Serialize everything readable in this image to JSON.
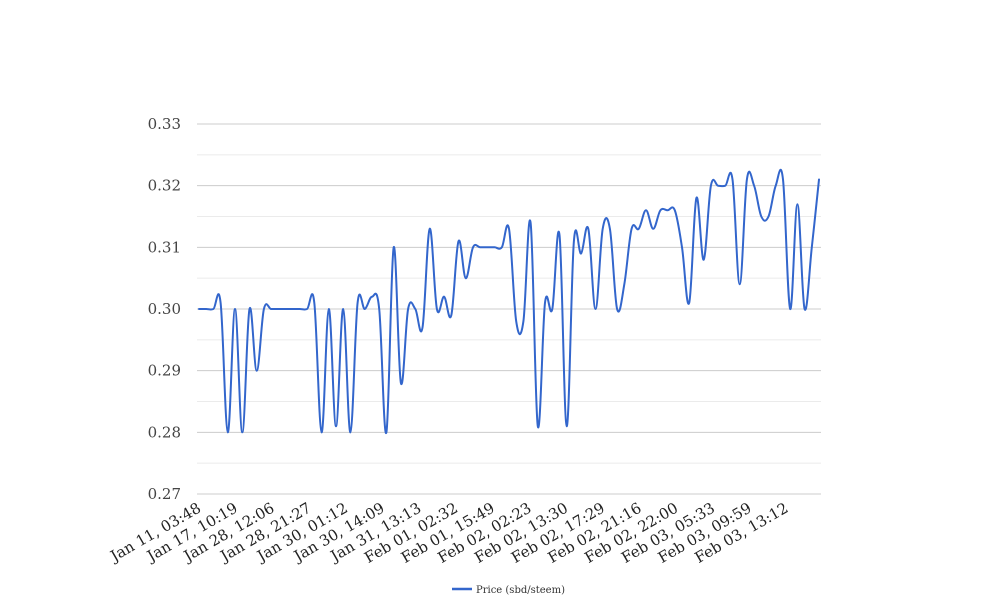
{
  "chart_data": {
    "type": "line",
    "title": "",
    "xlabel": "",
    "ylabel": "",
    "ylim": [
      0.27,
      0.33
    ],
    "y_ticks": [
      "0.27",
      "0.28",
      "0.29",
      "0.30",
      "0.31",
      "0.32",
      "0.33"
    ],
    "x_tick_labels": [
      "Jan 11, 03:48",
      "Jan 17, 10:19",
      "Jan 28, 12:06",
      "Jan 28, 21:27",
      "Jan 30, 01:12",
      "Jan 30, 14:09",
      "Jan 31, 13:13",
      "Feb 01, 02:32",
      "Feb 01, 15:49",
      "Feb 02, 02:23",
      "Feb 02, 13:30",
      "Feb 02, 17:29",
      "Feb 02, 21:16",
      "Feb 02, 22:00",
      "Feb 03, 05:33",
      "Feb 03, 09:59",
      "Feb 03, 13:12"
    ],
    "grid": "horizontal major and minor",
    "legend": {
      "position": "bottom"
    },
    "series": [
      {
        "name": "Price (sbd/steem)",
        "color": "#3366cc",
        "values": [
          0.3,
          0.3,
          0.3,
          0.301,
          0.28,
          0.3,
          0.28,
          0.3,
          0.29,
          0.3,
          0.3,
          0.3,
          0.3,
          0.3,
          0.3,
          0.3,
          0.301,
          0.28,
          0.3,
          0.281,
          0.3,
          0.28,
          0.301,
          0.3,
          0.302,
          0.3,
          0.28,
          0.31,
          0.288,
          0.3,
          0.3,
          0.297,
          0.313,
          0.3,
          0.302,
          0.299,
          0.311,
          0.305,
          0.31,
          0.31,
          0.31,
          0.31,
          0.31,
          0.313,
          0.298,
          0.298,
          0.314,
          0.281,
          0.301,
          0.3,
          0.312,
          0.281,
          0.311,
          0.309,
          0.313,
          0.3,
          0.313,
          0.313,
          0.3,
          0.304,
          0.313,
          0.313,
          0.316,
          0.313,
          0.316,
          0.316,
          0.316,
          0.31,
          0.301,
          0.318,
          0.308,
          0.32,
          0.32,
          0.32,
          0.321,
          0.304,
          0.321,
          0.32,
          0.315,
          0.315,
          0.32,
          0.321,
          0.3,
          0.317,
          0.3,
          0.31,
          0.321
        ]
      }
    ]
  }
}
